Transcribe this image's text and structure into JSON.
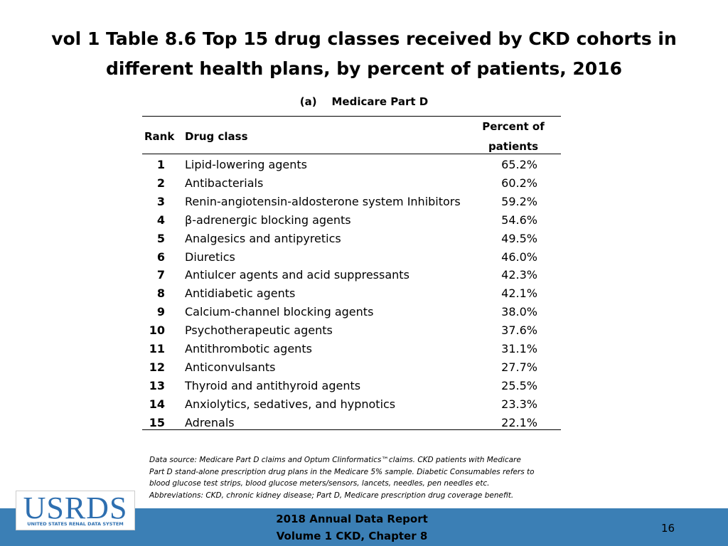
{
  "header": {
    "title": [
      "vol 1 Table 8.6 Top 15 drug classes received by CKD cohorts in",
      "different health plans, by percent of patients, 2016"
    ],
    "subtitle": "(a)    Medicare Part D"
  },
  "table": {
    "columns": [
      "Rank",
      "Drug class",
      [
        "Percent of",
        "patients"
      ]
    ],
    "rows": [
      [
        1,
        "Lipid-lowering agents",
        "65.2%"
      ],
      [
        2,
        "Antibacterials",
        "60.2%"
      ],
      [
        3,
        "Renin-angiotensin-aldosterone system Inhibitors",
        "59.2%"
      ],
      [
        4,
        "β-adrenergic blocking agents",
        "54.6%"
      ],
      [
        5,
        "Analgesics and antipyretics",
        "49.5%"
      ],
      [
        6,
        "Diuretics",
        "46.0%"
      ],
      [
        7,
        "Antiulcer agents and acid suppressants",
        "42.3%"
      ],
      [
        8,
        "Antidiabetic agents",
        "42.1%"
      ],
      [
        9,
        "Calcium-channel blocking agents",
        "38.0%"
      ],
      [
        10,
        "Psychotherapeutic agents",
        "37.6%"
      ],
      [
        11,
        "Antithrombotic agents",
        "31.1%"
      ],
      [
        12,
        "Anticonvulsants",
        "27.7%"
      ],
      [
        13,
        "Thyroid and antithyroid agents",
        "25.5%"
      ],
      [
        14,
        "Anxiolytics, sedatives, and hypnotics",
        "23.3%"
      ],
      [
        15,
        "Adrenals",
        "22.1%"
      ]
    ]
  },
  "footnote": [
    "Data source: Medicare Part D claims and Optum Clinformatics™claims. CKD patients with Medicare",
    "Part D stand-alone prescription drug plans in the Medicare 5% sample. Diabetic Consumables refers to",
    "blood glucose test strips, blood glucose meters/sensors, lancets, needles, pen needles etc.",
    "Abbreviations: CKD, chronic kidney disease; Part D, Medicare prescription drug coverage benefit."
  ],
  "footer": {
    "logo": "USRDS",
    "logo_caption": "UNITED STATES RENAL DATA SYSTEM",
    "report": [
      "2018 Annual Data Report",
      "Volume 1 CKD, Chapter 8"
    ],
    "page": 16
  }
}
